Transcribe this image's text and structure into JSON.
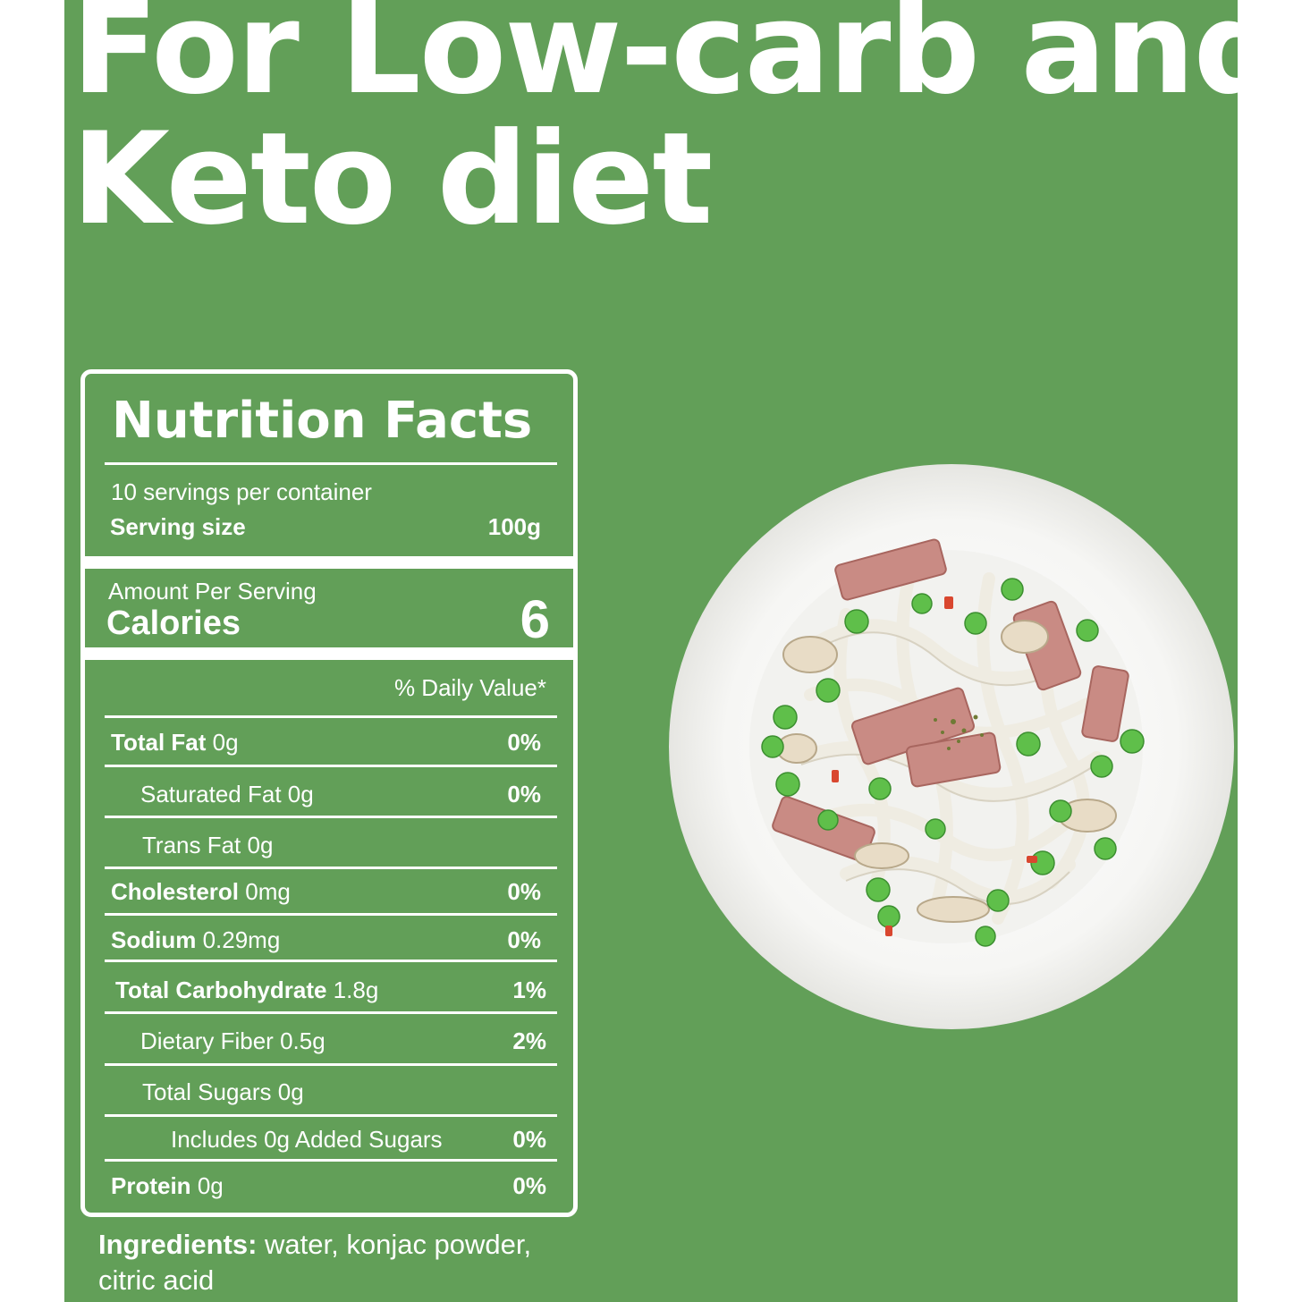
{
  "colors": {
    "panel": "#629f58",
    "text": "#ffffff"
  },
  "headline": {
    "line1": "For Low-carb and",
    "line2": "Keto diet"
  },
  "nutrition": {
    "title": "Nutrition Facts",
    "servings_per_container": "10 servings per container",
    "serving_size_label": "Serving size",
    "serving_size_value": "100g",
    "amount_per_serving": "Amount Per Serving",
    "calories_label": "Calories",
    "calories_value": "6",
    "daily_value_header": "% Daily Value*",
    "rows": [
      {
        "name": "Total Fat",
        "amount": "0g",
        "dv": "0%"
      },
      {
        "name": "Saturated Fat",
        "amount": "0g",
        "dv": "0%"
      },
      {
        "name": "Trans Fat",
        "amount": "0g",
        "dv": ""
      },
      {
        "name": "Cholesterol",
        "amount": "0mg",
        "dv": "0%"
      },
      {
        "name": "Sodium",
        "amount": "0.29mg",
        "dv": "0%"
      },
      {
        "name": "Total Carbohydrate",
        "amount": "1.8g",
        "dv": "1%"
      },
      {
        "name": "Dietary Fiber",
        "amount": "0.5g",
        "dv": "2%"
      },
      {
        "name": "Total Sugars",
        "amount": "0g",
        "dv": ""
      },
      {
        "name": "Includes 0g Added Sugars",
        "amount": "",
        "dv": "0%"
      },
      {
        "name": "Protein",
        "amount": "0g",
        "dv": "0%"
      }
    ]
  },
  "ingredients": {
    "label": "Ingredients:",
    "text": " water, konjac powder, citric acid"
  },
  "image": {
    "subject": "noodle-dish-plate"
  }
}
